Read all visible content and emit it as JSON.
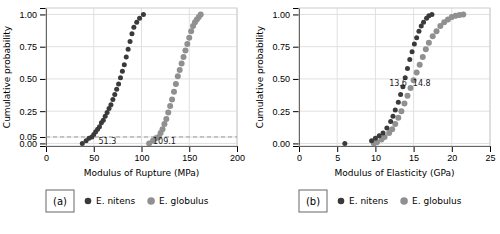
{
  "chart_data": [
    {
      "type": "scatter",
      "title": "(a)",
      "xlabel": "Modulus of Rupture (MPa)",
      "ylabel": "Cumulative probability",
      "xlim": [
        0,
        200
      ],
      "ylim": [
        -0.02,
        1.05
      ],
      "xticks": [
        0,
        50,
        100,
        150,
        200
      ],
      "yticks": [
        {
          "value": 0.0,
          "label": "0.00"
        },
        {
          "value": 0.05,
          "label": "0.05"
        },
        {
          "value": 0.25,
          "label": "0.25"
        },
        {
          "value": 0.5,
          "label": "0.50"
        },
        {
          "value": 0.75,
          "label": "0.75"
        },
        {
          "value": 1.0,
          "label": "1.00"
        }
      ],
      "grid": true,
      "legend": "bottom",
      "reference_lines": [
        {
          "y": 0.05,
          "line_style": "dashed"
        }
      ],
      "annotations": [
        {
          "x": 55,
          "y": 0.046,
          "text": "51.3"
        },
        {
          "x": 112,
          "y": 0.046,
          "text": "109.1"
        }
      ],
      "series": [
        {
          "name": "E. nitens",
          "color": "#3a3a3a",
          "x": [
            38,
            42,
            45,
            48,
            50,
            52,
            54,
            56,
            58,
            60,
            62,
            64,
            66,
            68,
            70,
            72,
            74,
            76,
            78,
            80,
            82,
            84,
            86,
            88,
            90,
            92,
            95,
            98,
            102
          ],
          "values": [
            0.0,
            0.02,
            0.04,
            0.05,
            0.07,
            0.09,
            0.11,
            0.13,
            0.16,
            0.18,
            0.21,
            0.24,
            0.27,
            0.3,
            0.34,
            0.38,
            0.42,
            0.46,
            0.51,
            0.56,
            0.61,
            0.67,
            0.73,
            0.79,
            0.85,
            0.9,
            0.94,
            0.97,
            1.0
          ]
        },
        {
          "name": "E. globulus",
          "color": "#909090",
          "x": [
            108,
            112,
            115,
            118,
            120,
            122,
            124,
            126,
            128,
            130,
            132,
            134,
            136,
            138,
            140,
            142,
            144,
            146,
            148,
            150,
            152,
            154,
            156,
            158,
            160,
            162
          ],
          "values": [
            0.0,
            0.02,
            0.04,
            0.05,
            0.08,
            0.11,
            0.15,
            0.19,
            0.24,
            0.29,
            0.34,
            0.4,
            0.46,
            0.52,
            0.57,
            0.62,
            0.67,
            0.72,
            0.77,
            0.82,
            0.87,
            0.91,
            0.94,
            0.96,
            0.98,
            1.0
          ]
        }
      ]
    },
    {
      "type": "scatter",
      "title": "(b)",
      "xlabel": "Modulus of Elasticity (GPa)",
      "ylabel": "Cumulative probability",
      "xlim": [
        0,
        25
      ],
      "ylim": [
        -0.02,
        1.05
      ],
      "xticks": [
        0,
        5,
        10,
        15,
        20,
        25
      ],
      "yticks": [
        {
          "value": 0.0,
          "label": "0.00"
        },
        {
          "value": 0.25,
          "label": "0.25"
        },
        {
          "value": 0.5,
          "label": "0.50"
        },
        {
          "value": 0.75,
          "label": "0.75"
        },
        {
          "value": 1.0,
          "label": "1.00"
        }
      ],
      "grid": true,
      "legend": "bottom",
      "annotations": [
        {
          "x": 11.8,
          "y": 0.5,
          "text": "13.6"
        },
        {
          "x": 14.9,
          "y": 0.5,
          "text": "14.8"
        }
      ],
      "series": [
        {
          "name": "E. nitens",
          "color": "#3a3a3a",
          "x": [
            6.0,
            9.5,
            10.0,
            10.5,
            11.0,
            11.5,
            12.0,
            12.3,
            12.6,
            13.0,
            13.3,
            13.6,
            13.9,
            14.2,
            14.5,
            14.8,
            15.1,
            15.4,
            15.7,
            16.0,
            16.3,
            16.7,
            17.0,
            17.4
          ],
          "values": [
            0.0,
            0.02,
            0.04,
            0.06,
            0.08,
            0.12,
            0.17,
            0.21,
            0.26,
            0.32,
            0.38,
            0.44,
            0.51,
            0.58,
            0.65,
            0.71,
            0.77,
            0.82,
            0.87,
            0.91,
            0.94,
            0.97,
            0.99,
            1.0
          ]
        },
        {
          "name": "E. globulus",
          "color": "#909090",
          "x": [
            9.8,
            10.2,
            10.8,
            11.2,
            11.8,
            12.2,
            12.6,
            13.0,
            13.4,
            13.8,
            14.2,
            14.6,
            15.0,
            15.4,
            15.8,
            16.2,
            16.6,
            17.0,
            17.5,
            18.0,
            18.5,
            19.0,
            19.5,
            20.0,
            20.5,
            21.0,
            21.5
          ],
          "values": [
            0.0,
            0.01,
            0.03,
            0.05,
            0.08,
            0.11,
            0.15,
            0.2,
            0.25,
            0.31,
            0.37,
            0.43,
            0.49,
            0.55,
            0.61,
            0.67,
            0.73,
            0.78,
            0.83,
            0.87,
            0.91,
            0.94,
            0.96,
            0.98,
            0.99,
            0.995,
            1.0
          ]
        }
      ]
    }
  ]
}
